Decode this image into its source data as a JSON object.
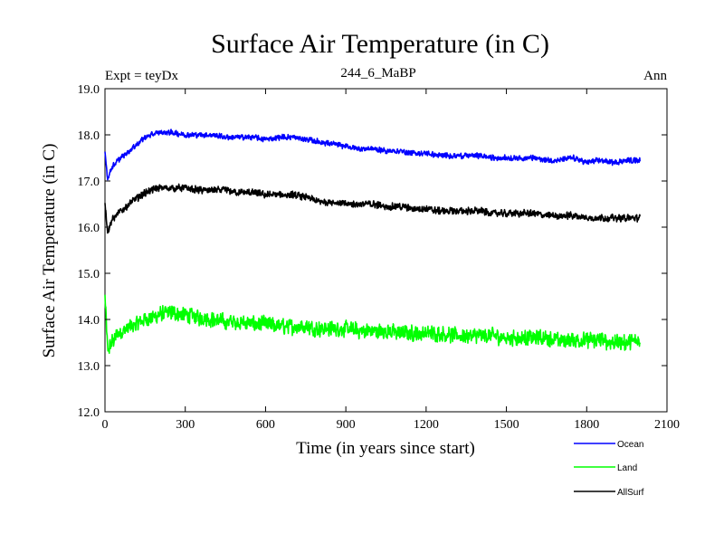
{
  "chart_data": {
    "type": "line",
    "title": "Surface Air Temperature (in C)",
    "subtitle": "244_6_MaBP",
    "left_label": "Expt = teyDx",
    "right_label": "Ann",
    "xlabel": "Time (in years since start)",
    "ylabel": "Surface Air Temperature (in C)",
    "xlim": [
      0,
      2100
    ],
    "ylim": [
      12.0,
      19.0
    ],
    "xticks": [
      0,
      300,
      600,
      900,
      1200,
      1500,
      1800,
      2100
    ],
    "yticks": [
      12.0,
      13.0,
      14.0,
      15.0,
      16.0,
      17.0,
      18.0,
      19.0
    ],
    "xtick_labels": [
      "0",
      "300",
      "600",
      "900",
      "1200",
      "1500",
      "1800",
      "2100"
    ],
    "ytick_labels": [
      "12.0",
      "13.0",
      "14.0",
      "15.0",
      "16.0",
      "17.0",
      "18.0",
      "19.0"
    ],
    "legend_position": "bottom-right",
    "series": [
      {
        "name": "Ocean",
        "color": "#0000ff",
        "x": [
          0,
          10,
          25,
          50,
          100,
          150,
          200,
          250,
          300,
          350,
          400,
          450,
          500,
          550,
          600,
          650,
          700,
          750,
          800,
          850,
          900,
          950,
          1000,
          1050,
          1100,
          1150,
          1200,
          1250,
          1300,
          1350,
          1400,
          1450,
          1500,
          1550,
          1600,
          1650,
          1700,
          1750,
          1800,
          1850,
          1900,
          1950,
          2000
        ],
        "values": [
          17.6,
          17.05,
          17.3,
          17.45,
          17.7,
          17.95,
          18.05,
          18.05,
          18.0,
          18.0,
          18.0,
          17.95,
          17.95,
          17.95,
          17.9,
          17.95,
          17.95,
          17.9,
          17.85,
          17.8,
          17.75,
          17.7,
          17.7,
          17.65,
          17.65,
          17.6,
          17.6,
          17.55,
          17.55,
          17.55,
          17.55,
          17.5,
          17.5,
          17.5,
          17.5,
          17.45,
          17.45,
          17.5,
          17.4,
          17.45,
          17.4,
          17.45,
          17.45
        ],
        "noise": 0.07
      },
      {
        "name": "Land",
        "color": "#00ff00",
        "x": [
          0,
          10,
          25,
          50,
          100,
          150,
          200,
          250,
          300,
          350,
          400,
          450,
          500,
          550,
          600,
          650,
          700,
          750,
          800,
          850,
          900,
          950,
          1000,
          1050,
          1100,
          1150,
          1200,
          1250,
          1300,
          1350,
          1400,
          1450,
          1500,
          1550,
          1600,
          1650,
          1700,
          1750,
          1800,
          1850,
          1900,
          1950,
          2000
        ],
        "values": [
          14.5,
          13.3,
          13.5,
          13.7,
          13.85,
          14.0,
          14.1,
          14.15,
          14.1,
          14.05,
          14.0,
          13.95,
          13.95,
          13.9,
          13.9,
          13.85,
          13.85,
          13.85,
          13.8,
          13.8,
          13.8,
          13.75,
          13.75,
          13.75,
          13.7,
          13.7,
          13.7,
          13.7,
          13.65,
          13.65,
          13.65,
          13.65,
          13.6,
          13.6,
          13.6,
          13.6,
          13.55,
          13.55,
          13.55,
          13.55,
          13.5,
          13.5,
          13.55
        ],
        "noise": 0.2
      },
      {
        "name": "AllSurf",
        "color": "#000000",
        "x": [
          0,
          10,
          25,
          50,
          100,
          150,
          200,
          250,
          300,
          350,
          400,
          450,
          500,
          550,
          600,
          650,
          700,
          750,
          800,
          850,
          900,
          950,
          1000,
          1050,
          1100,
          1150,
          1200,
          1250,
          1300,
          1350,
          1400,
          1450,
          1500,
          1550,
          1600,
          1650,
          1700,
          1750,
          1800,
          1850,
          1900,
          1950,
          2000
        ],
        "values": [
          16.55,
          15.9,
          16.15,
          16.3,
          16.55,
          16.75,
          16.85,
          16.85,
          16.85,
          16.8,
          16.8,
          16.8,
          16.75,
          16.75,
          16.7,
          16.7,
          16.7,
          16.65,
          16.55,
          16.55,
          16.5,
          16.5,
          16.5,
          16.45,
          16.45,
          16.4,
          16.4,
          16.35,
          16.35,
          16.35,
          16.35,
          16.3,
          16.3,
          16.3,
          16.3,
          16.25,
          16.25,
          16.25,
          16.2,
          16.2,
          16.2,
          16.2,
          16.2
        ],
        "noise": 0.09
      }
    ]
  }
}
